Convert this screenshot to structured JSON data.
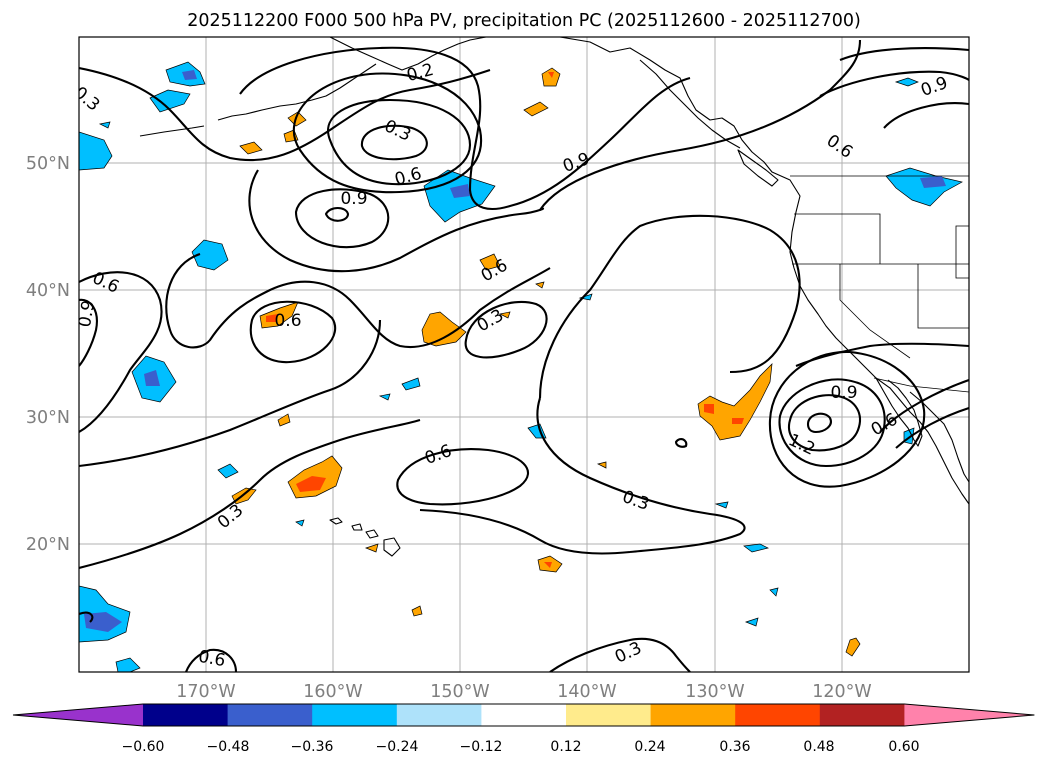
{
  "title": "2025112200 F000 500 hPa PV, precipitation PC (2025112600 - 2025112700)",
  "map": {
    "lon_labels": [
      "170°W",
      "160°W",
      "150°W",
      "140°W",
      "130°W",
      "120°W"
    ],
    "lat_labels": [
      "50°N",
      "40°N",
      "30°N",
      "20°N"
    ],
    "lon_range": [
      "178°W",
      "108°W"
    ],
    "lat_range": [
      "10°N",
      "60°N"
    ],
    "gridlines": true
  },
  "contour_labels": [
    {
      "text": "0.3"
    },
    {
      "text": "0.2"
    },
    {
      "text": "0.3"
    },
    {
      "text": "0.6"
    },
    {
      "text": "0.9"
    },
    {
      "text": "0.9"
    },
    {
      "text": "0.9"
    },
    {
      "text": "0.6"
    },
    {
      "text": "0.6"
    },
    {
      "text": "0.9"
    },
    {
      "text": "0.6"
    },
    {
      "text": "0.6"
    },
    {
      "text": "0.3"
    },
    {
      "text": "0.9"
    },
    {
      "text": "1.2"
    },
    {
      "text": "0.6"
    },
    {
      "text": "0.6"
    },
    {
      "text": "0.3"
    },
    {
      "text": "0.3"
    },
    {
      "text": "0.3"
    },
    {
      "text": "0.6"
    }
  ],
  "colorbar": {
    "ticks": [
      "−0.60",
      "−0.48",
      "−0.36",
      "−0.24",
      "−0.12",
      "0.12",
      "0.24",
      "0.36",
      "0.48",
      "0.60"
    ],
    "colors": [
      "#9932cc",
      "#00008b",
      "#3a5fcd",
      "#00bfff",
      "#aee2fa",
      "#ffffff",
      "#ffeb8c",
      "#ffa500",
      "#ff4500",
      "#b22222",
      "#ff82ab"
    ]
  },
  "colors": {
    "neg_light": "#00bfff",
    "neg_mid": "#3a5fcd",
    "pos_light": "#ffa500",
    "pos_mid": "#ff4500"
  }
}
